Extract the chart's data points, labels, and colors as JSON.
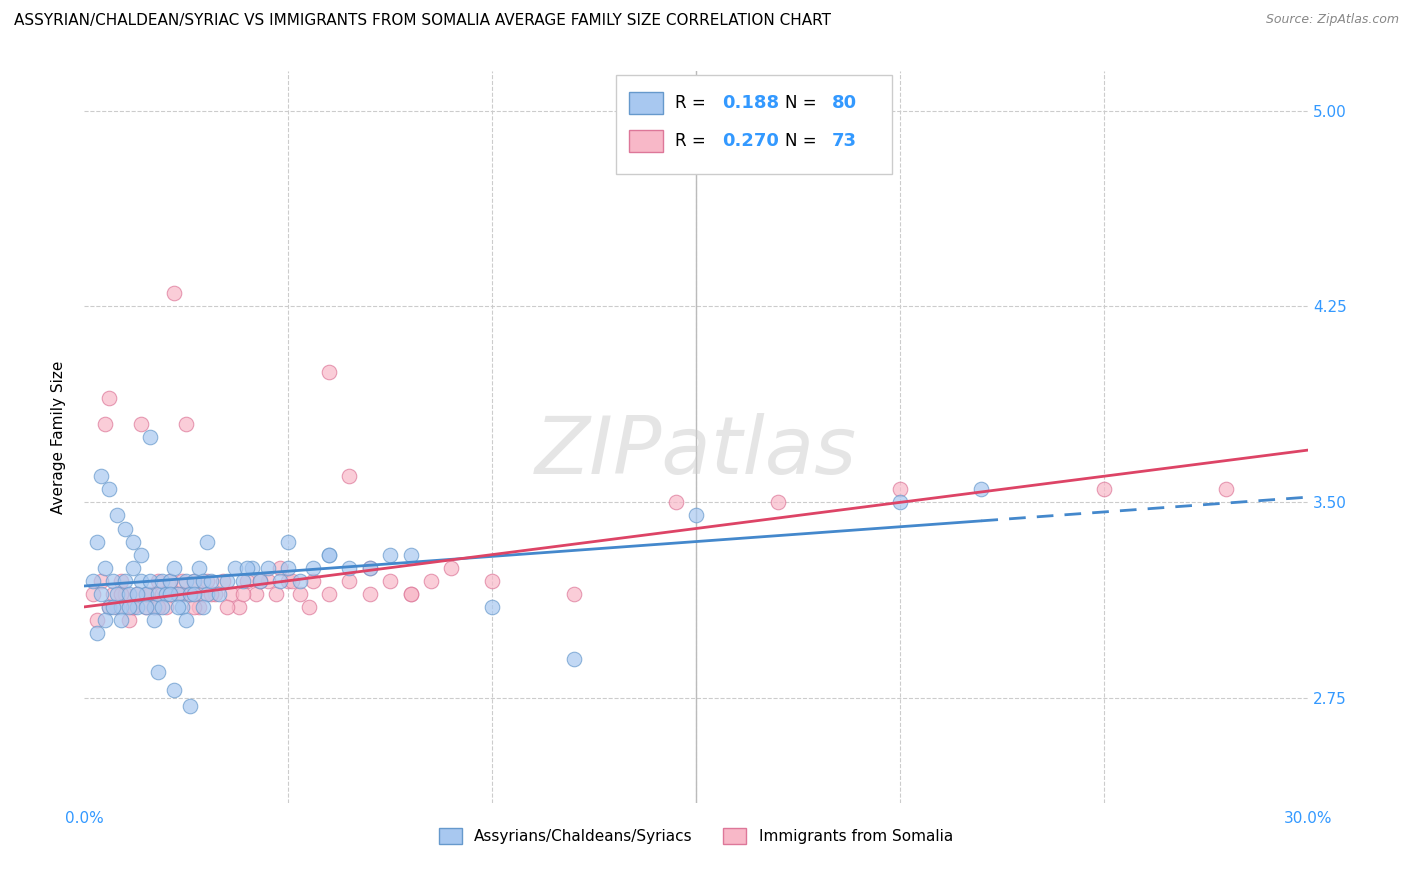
{
  "title": "ASSYRIAN/CHALDEAN/SYRIAC VS IMMIGRANTS FROM SOMALIA AVERAGE FAMILY SIZE CORRELATION CHART",
  "source": "Source: ZipAtlas.com",
  "ylabel": "Average Family Size",
  "watermark": "ZIPatlas",
  "xmin": 0.0,
  "xmax": 0.3,
  "ymin": 2.35,
  "ymax": 5.15,
  "yticks_right": [
    2.75,
    3.5,
    4.25,
    5.0
  ],
  "xticks": [
    0.0,
    0.05,
    0.1,
    0.15,
    0.2,
    0.25,
    0.3
  ],
  "series1_color": "#a8c8f0",
  "series1_edgecolor": "#6699cc",
  "series2_color": "#f8b8c8",
  "series2_edgecolor": "#dd7799",
  "series1_label": "Assyrians/Chaldeans/Syriacs",
  "series2_label": "Immigrants from Somalia",
  "line1_color": "#4488cc",
  "line2_color": "#dd4466",
  "title_fontsize": 11,
  "axis_color": "#3399ff",
  "line1_xsolid_end": 0.22,
  "line1_xdash_end": 0.3,
  "line2_xend": 0.3,
  "line1_x0": 0.0,
  "line1_y0": 3.18,
  "line1_y1": 3.52,
  "line2_y0": 3.1,
  "line2_y1": 3.7,
  "series1_x": [
    0.002,
    0.003,
    0.004,
    0.005,
    0.006,
    0.007,
    0.008,
    0.009,
    0.01,
    0.011,
    0.012,
    0.013,
    0.014,
    0.015,
    0.016,
    0.017,
    0.018,
    0.019,
    0.02,
    0.021,
    0.022,
    0.023,
    0.024,
    0.025,
    0.026,
    0.027,
    0.028,
    0.029,
    0.03,
    0.003,
    0.005,
    0.007,
    0.009,
    0.011,
    0.013,
    0.015,
    0.017,
    0.019,
    0.021,
    0.023,
    0.025,
    0.027,
    0.029,
    0.031,
    0.033,
    0.035,
    0.037,
    0.039,
    0.041,
    0.043,
    0.045,
    0.048,
    0.05,
    0.053,
    0.056,
    0.06,
    0.065,
    0.07,
    0.075,
    0.004,
    0.006,
    0.008,
    0.01,
    0.012,
    0.014,
    0.016,
    0.018,
    0.022,
    0.026,
    0.03,
    0.04,
    0.05,
    0.06,
    0.08,
    0.1,
    0.12,
    0.15,
    0.2,
    0.22
  ],
  "series1_y": [
    3.2,
    3.35,
    3.15,
    3.25,
    3.1,
    3.2,
    3.15,
    3.1,
    3.2,
    3.15,
    3.25,
    3.1,
    3.2,
    3.15,
    3.2,
    3.1,
    3.15,
    3.2,
    3.15,
    3.2,
    3.25,
    3.15,
    3.1,
    3.2,
    3.15,
    3.2,
    3.25,
    3.2,
    3.15,
    3.0,
    3.05,
    3.1,
    3.05,
    3.1,
    3.15,
    3.1,
    3.05,
    3.1,
    3.15,
    3.1,
    3.05,
    3.15,
    3.1,
    3.2,
    3.15,
    3.2,
    3.25,
    3.2,
    3.25,
    3.2,
    3.25,
    3.2,
    3.25,
    3.2,
    3.25,
    3.3,
    3.25,
    3.25,
    3.3,
    3.6,
    3.55,
    3.45,
    3.4,
    3.35,
    3.3,
    3.75,
    2.85,
    2.78,
    2.72,
    3.35,
    3.25,
    3.35,
    3.3,
    3.3,
    3.1,
    2.9,
    3.45,
    3.5,
    3.55
  ],
  "series2_x": [
    0.002,
    0.004,
    0.005,
    0.006,
    0.007,
    0.008,
    0.009,
    0.01,
    0.011,
    0.012,
    0.013,
    0.014,
    0.015,
    0.016,
    0.017,
    0.018,
    0.019,
    0.02,
    0.021,
    0.022,
    0.023,
    0.024,
    0.025,
    0.026,
    0.027,
    0.028,
    0.029,
    0.03,
    0.032,
    0.034,
    0.036,
    0.038,
    0.04,
    0.042,
    0.045,
    0.048,
    0.05,
    0.053,
    0.056,
    0.06,
    0.065,
    0.07,
    0.075,
    0.08,
    0.085,
    0.003,
    0.006,
    0.009,
    0.012,
    0.015,
    0.018,
    0.021,
    0.024,
    0.027,
    0.031,
    0.035,
    0.039,
    0.043,
    0.047,
    0.051,
    0.055,
    0.06,
    0.065,
    0.07,
    0.08,
    0.09,
    0.1,
    0.12,
    0.145,
    0.17,
    0.2,
    0.25,
    0.28
  ],
  "series2_y": [
    3.15,
    3.2,
    3.8,
    3.9,
    3.15,
    3.1,
    3.2,
    3.15,
    3.05,
    3.1,
    3.15,
    3.8,
    3.1,
    3.15,
    3.1,
    3.2,
    3.15,
    3.1,
    3.15,
    4.3,
    3.15,
    3.2,
    3.8,
    3.15,
    3.2,
    3.1,
    3.15,
    3.2,
    3.15,
    3.2,
    3.15,
    3.1,
    3.2,
    3.15,
    3.2,
    3.25,
    3.2,
    3.15,
    3.2,
    4.0,
    3.6,
    3.25,
    3.2,
    3.15,
    3.2,
    3.05,
    3.1,
    3.15,
    3.1,
    3.15,
    3.1,
    3.2,
    3.15,
    3.1,
    3.15,
    3.1,
    3.15,
    3.2,
    3.15,
    3.2,
    3.1,
    3.15,
    3.2,
    3.15,
    3.15,
    3.25,
    3.2,
    3.15,
    3.5,
    3.5,
    3.55,
    3.55,
    3.55
  ]
}
